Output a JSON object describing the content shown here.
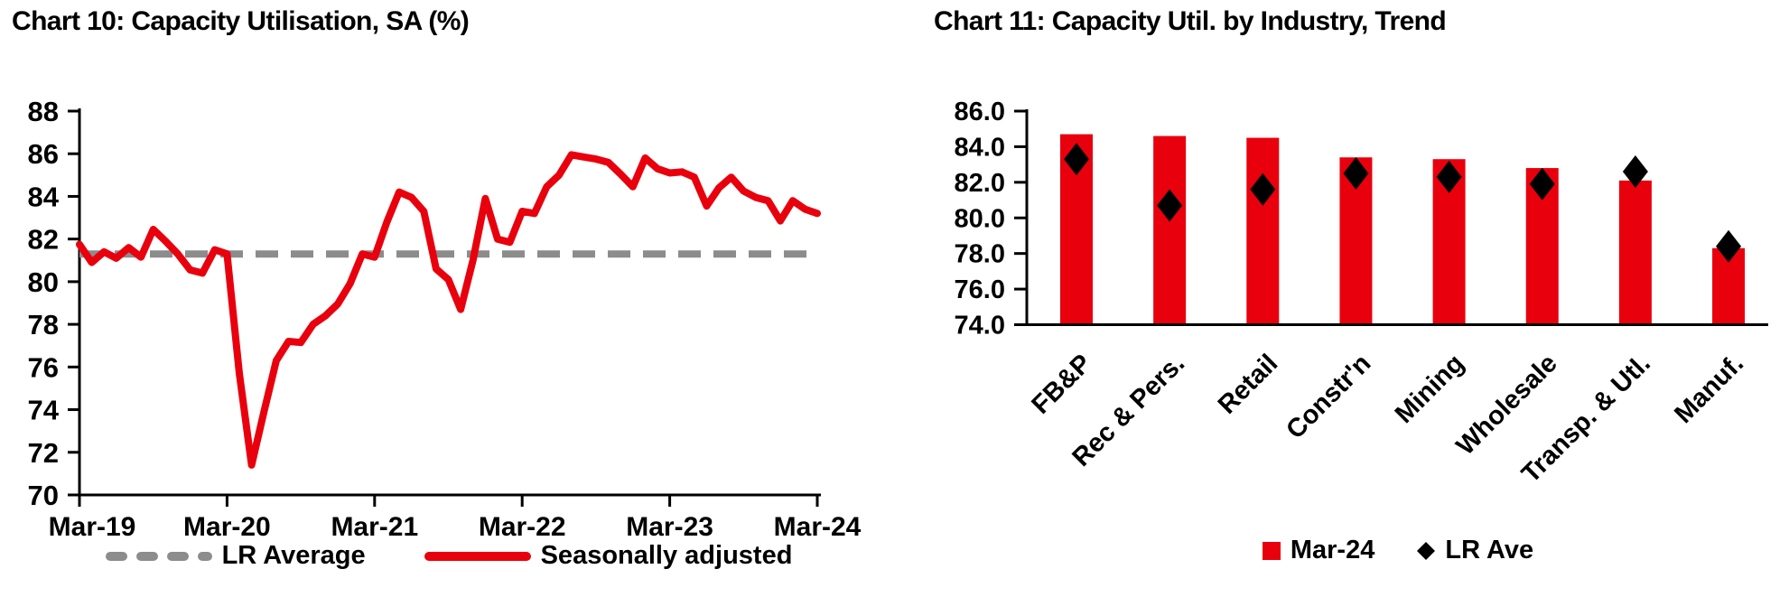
{
  "page": {
    "background": "#ffffff",
    "text_color": "#000000"
  },
  "chart_data": [
    {
      "type": "line",
      "title": "Chart 10: Capacity Utilisation, SA (%)",
      "x_frequency": "monthly",
      "x_start": "Mar-19",
      "x_end": "Mar-24",
      "x_tick_labels": [
        "Mar-19",
        "Mar-20",
        "Mar-21",
        "Mar-22",
        "Mar-23",
        "Mar-24"
      ],
      "ylim": [
        70,
        88
      ],
      "ytick_step": 2,
      "grid": false,
      "legend_position": "bottom",
      "series": [
        {
          "name": "Seasonally adjusted",
          "style": "solid",
          "color": "#e8000d",
          "values": [
            81.75,
            80.9,
            81.4,
            81.1,
            81.6,
            81.15,
            82.45,
            81.9,
            81.3,
            80.55,
            80.4,
            81.5,
            81.3,
            75.7,
            71.4,
            73.9,
            76.3,
            77.2,
            77.15,
            78.0,
            78.4,
            78.95,
            79.9,
            81.3,
            81.15,
            82.8,
            84.2,
            83.95,
            83.3,
            80.6,
            80.1,
            78.7,
            81.0,
            83.9,
            82.0,
            81.85,
            83.3,
            83.2,
            84.45,
            85.0,
            85.95,
            85.85,
            85.75,
            85.6,
            85.05,
            84.45,
            85.8,
            85.3,
            85.1,
            85.15,
            84.9,
            83.55,
            84.4,
            84.9,
            84.25,
            83.95,
            83.8,
            82.85,
            83.8,
            83.4,
            83.2
          ]
        },
        {
          "name": "LR Average",
          "style": "dashed",
          "color": "#8c8c8c",
          "value": 81.3
        }
      ]
    },
    {
      "type": "bar",
      "title": "Chart 11: Capacity Util. by Industry, Trend",
      "categories": [
        "FB&P",
        "Rec & Pers.",
        "Retail",
        "Constr'n",
        "Mining",
        "Wholesale",
        "Transp. & Utl.",
        "Manuf."
      ],
      "ylim": [
        74,
        86
      ],
      "ytick_step": 2,
      "ytick_decimals": 1,
      "legend_position": "bottom",
      "series": [
        {
          "name": "Mar-24",
          "type": "bar",
          "marker": "square",
          "color": "#e8000d",
          "values": [
            84.7,
            84.6,
            84.5,
            83.4,
            83.3,
            82.8,
            82.1,
            78.3
          ]
        },
        {
          "name": "LR Ave",
          "type": "scatter",
          "marker": "diamond",
          "color": "#000000",
          "values": [
            83.3,
            80.7,
            81.6,
            82.5,
            82.3,
            81.9,
            82.6,
            78.4
          ]
        }
      ]
    }
  ]
}
